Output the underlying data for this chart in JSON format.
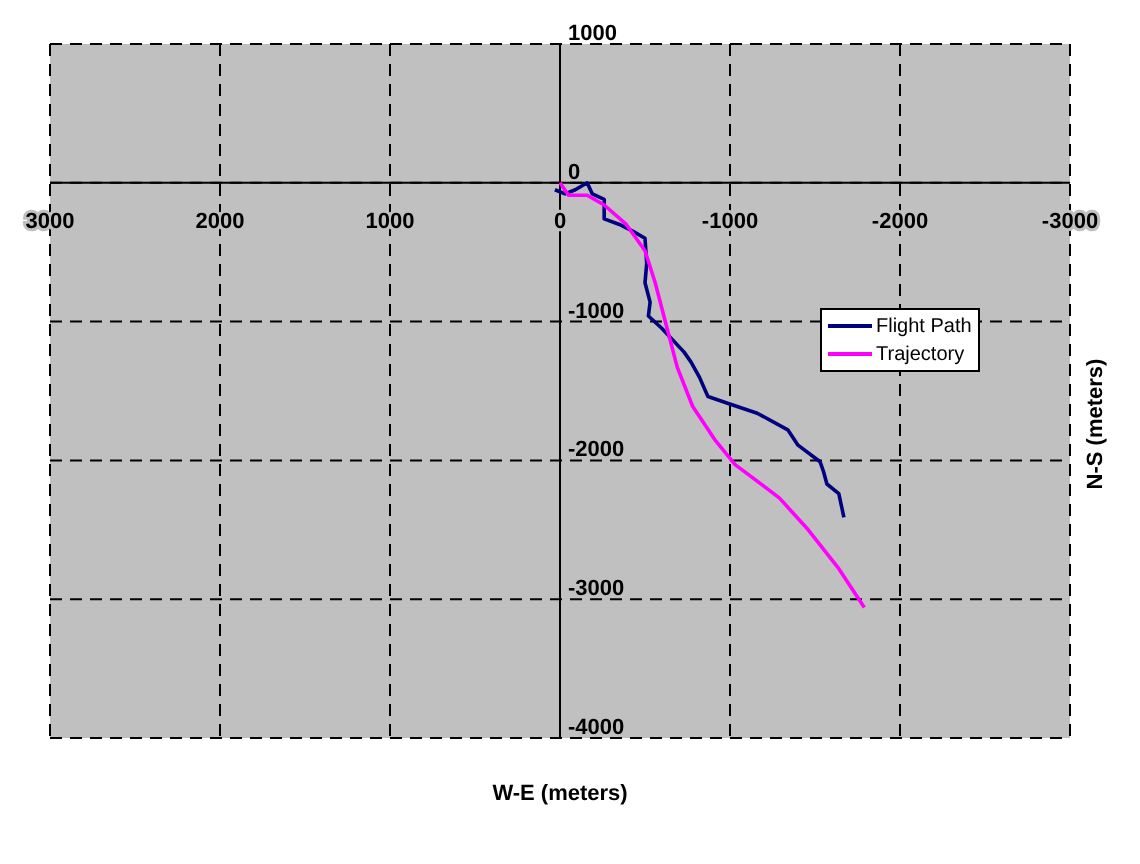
{
  "chart_data": {
    "type": "line",
    "xlabel": "W-E (meters)",
    "ylabel": "N-S (meters)",
    "xlim": [
      3000,
      -3000
    ],
    "ylim": [
      -4000,
      1000
    ],
    "xticks": [
      3000,
      2000,
      1000,
      0,
      -1000,
      -2000,
      -3000
    ],
    "yticks": [
      1000,
      0,
      -1000,
      -2000,
      -3000,
      -4000
    ],
    "grid": true,
    "legend": "right",
    "line_style": "solid",
    "marker": "none",
    "series": [
      {
        "name": "Flight Path",
        "color": "#000080",
        "x": [
          30,
          -30,
          -90,
          -160,
          -190,
          -260,
          -260,
          -350,
          -430,
          -500,
          -510,
          -500,
          -530,
          -520,
          -600,
          -730,
          -770,
          -820,
          -870,
          -990,
          -1160,
          -1340,
          -1400,
          -1530,
          -1550,
          -1570,
          -1640,
          -1670
        ],
        "values": [
          -50,
          -80,
          -50,
          0,
          -80,
          -120,
          -260,
          -300,
          -350,
          -400,
          -580,
          -720,
          -860,
          -960,
          -1050,
          -1220,
          -1290,
          -1400,
          -1540,
          -1590,
          -1660,
          -1780,
          -1890,
          -2010,
          -2080,
          -2170,
          -2240,
          -2410
        ]
      },
      {
        "name": "Trajectory",
        "color": "#ff00ff",
        "x": [
          0,
          -50,
          -160,
          -260,
          -390,
          -500,
          -560,
          -630,
          -690,
          -780,
          -910,
          -1030,
          -1290,
          -1460,
          -1640,
          -1790
        ],
        "values": [
          0,
          -90,
          -90,
          -160,
          -300,
          -490,
          -720,
          -1050,
          -1330,
          -1610,
          -1850,
          -2030,
          -2270,
          -2500,
          -2780,
          -3060
        ]
      }
    ]
  }
}
